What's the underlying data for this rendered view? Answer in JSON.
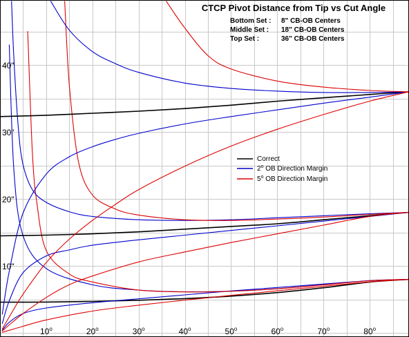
{
  "chart_data": {
    "type": "line",
    "title": "CTCP Pivot Distance from Tip vs Cut Angle",
    "set_notes": [
      {
        "label": "Bottom Set :",
        "value": "8\" CB-OB Centers"
      },
      {
        "label": "Middle Set :",
        "value": "18\" CB-OB Centers"
      },
      {
        "label": "Top Set :",
        "value": "36\" CB-OB Centers"
      }
    ],
    "xlabel": "",
    "ylabel": "",
    "xlim": [
      0,
      88.5
    ],
    "ylim": [
      -0.6,
      49.7
    ],
    "x_tick_values": [
      10,
      20,
      30,
      40,
      50,
      60,
      70,
      80
    ],
    "x_tick_labels": [
      "10",
      "20",
      "30",
      "40",
      "50",
      "60",
      "70",
      "80"
    ],
    "x_tick_suffix": "o",
    "y_tick_values": [
      10,
      20,
      30,
      40
    ],
    "y_tick_labels": [
      "10\"",
      "20\"",
      "30\"",
      "40\""
    ],
    "x_grid_step": 5,
    "y_grid_step": 5,
    "grid": true,
    "legend": {
      "placement": "center-right",
      "entries": [
        {
          "name": "Correct",
          "color": "#000000"
        },
        {
          "name": "2",
          "sup": "o",
          "suffix": " OB Direction Margin",
          "color": "#0000cc"
        },
        {
          "name": "5",
          "sup": "o",
          "suffix": " OB Direction Margin",
          "color": "#dd0000"
        }
      ]
    },
    "sets": [
      {
        "set": "Bottom Set",
        "D": 8
      },
      {
        "set": "Middle Set",
        "D": 18
      },
      {
        "set": "Top Set",
        "D": 36
      }
    ],
    "series": [
      {
        "set": "Bottom Set",
        "kind": "correct",
        "color": "#000000",
        "x": [
          0,
          10,
          20,
          30,
          40,
          50,
          60,
          70,
          80,
          88.5
        ],
        "y": [
          4.59,
          4.62,
          4.71,
          4.88,
          5.13,
          5.5,
          6.03,
          6.75,
          7.6,
          8.0
        ]
      },
      {
        "set": "Bottom Set",
        "kind": "margin-2",
        "branch": "upper",
        "color": "#0000cc",
        "x": [
          2,
          3,
          5,
          10,
          20,
          30,
          40,
          50,
          60,
          70,
          80,
          88.5
        ],
        "y": [
          43.0,
          24.3,
          14.5,
          9.63,
          7.19,
          6.41,
          6.15,
          6.25,
          6.61,
          7.22,
          7.82,
          8.0
        ]
      },
      {
        "set": "Bottom Set",
        "kind": "margin-2",
        "branch": "lower",
        "color": "#0000cc",
        "x": [
          0.5,
          2,
          5,
          10,
          20,
          30,
          40,
          50,
          60,
          70,
          80,
          88.5
        ],
        "y": [
          0.4,
          1.6,
          2.9,
          3.73,
          4.51,
          5.1,
          5.69,
          6.27,
          6.79,
          7.31,
          7.8,
          8.0
        ]
      },
      {
        "set": "Bottom Set",
        "kind": "margin-5",
        "branch": "upper",
        "color": "#dd0000",
        "x": [
          6,
          7,
          8,
          10,
          15,
          20,
          30,
          40,
          50,
          60,
          70,
          80,
          88.5
        ],
        "y": [
          45.0,
          27.0,
          19.3,
          12.3,
          8.8,
          7.62,
          6.4,
          6.13,
          6.22,
          6.59,
          7.18,
          7.8,
          8.0
        ]
      },
      {
        "set": "Bottom Set",
        "kind": "margin-5",
        "branch": "lower",
        "color": "#dd0000",
        "x": [
          0.5,
          2,
          5,
          10,
          20,
          30,
          40,
          50,
          60,
          70,
          80,
          88.5
        ],
        "y": [
          0.1,
          0.4,
          1.0,
          1.95,
          3.27,
          4.15,
          4.9,
          5.62,
          6.3,
          6.97,
          7.63,
          8.0
        ]
      },
      {
        "set": "Middle Set",
        "kind": "correct",
        "color": "#000000",
        "x": [
          0,
          10,
          20,
          30,
          40,
          50,
          60,
          70,
          80,
          88.5
        ],
        "y": [
          14.5,
          14.6,
          14.8,
          15.1,
          15.5,
          15.9,
          16.3,
          16.9,
          17.5,
          18.0
        ]
      },
      {
        "set": "Middle Set",
        "kind": "margin-2",
        "branch": "upper",
        "color": "#0000cc",
        "x": [
          2.5,
          3,
          4,
          5,
          7,
          10,
          15,
          20,
          30,
          40,
          50,
          60,
          70,
          80,
          88.5
        ],
        "y": [
          49.5,
          41.0,
          30.3,
          25.1,
          21.4,
          19.5,
          18.1,
          17.4,
          16.9,
          16.8,
          16.9,
          17.2,
          17.5,
          17.8,
          18.0
        ]
      },
      {
        "set": "Middle Set",
        "kind": "margin-2",
        "branch": "lower",
        "color": "#0000cc",
        "x": [
          0.5,
          2,
          5,
          10,
          15,
          20,
          30,
          40,
          50,
          60,
          70,
          80,
          88.5
        ],
        "y": [
          1.4,
          4.8,
          9.0,
          11.5,
          12.4,
          13.1,
          13.9,
          14.6,
          15.3,
          16.0,
          16.7,
          17.4,
          18.0
        ]
      },
      {
        "set": "Middle Set",
        "kind": "margin-5",
        "branch": "upper",
        "color": "#dd0000",
        "x": [
          14,
          15,
          17,
          20,
          25,
          30,
          40,
          50,
          60,
          70,
          80,
          88.5
        ],
        "y": [
          49.5,
          37.0,
          25.5,
          20.6,
          18.5,
          17.6,
          16.9,
          16.8,
          17.0,
          17.3,
          17.7,
          18.0
        ]
      },
      {
        "set": "Middle Set",
        "kind": "margin-5",
        "branch": "lower",
        "color": "#dd0000",
        "x": [
          0.5,
          2,
          5,
          10,
          15,
          20,
          30,
          40,
          50,
          60,
          70,
          80,
          88.5
        ],
        "y": [
          0.3,
          1.2,
          2.9,
          5.3,
          7.2,
          8.5,
          10.6,
          12.1,
          13.5,
          14.8,
          16.1,
          17.4,
          18.0
        ]
      },
      {
        "set": "Top Set",
        "kind": "correct",
        "color": "#000000",
        "x": [
          0,
          10,
          20,
          30,
          40,
          50,
          60,
          70,
          80,
          88.5
        ],
        "y": [
          32.3,
          32.5,
          32.8,
          33.1,
          33.5,
          34.0,
          34.6,
          35.1,
          35.6,
          36.0
        ]
      },
      {
        "set": "Top Set",
        "kind": "margin-2",
        "branch": "upper",
        "color": "#0000cc",
        "x": [
          11,
          15,
          20,
          25,
          30,
          40,
          50,
          60,
          70,
          80,
          88.5
        ],
        "y": [
          49.5,
          45.2,
          42.0,
          40.2,
          38.9,
          37.3,
          36.5,
          36.1,
          35.9,
          35.9,
          36.0
        ]
      },
      {
        "set": "Top Set",
        "kind": "margin-2",
        "branch": "lower",
        "color": "#0000cc",
        "x": [
          0.5,
          2,
          5,
          10,
          15,
          20,
          25,
          30,
          40,
          50,
          60,
          70,
          80,
          88.5
        ],
        "y": [
          2.8,
          9.2,
          17.9,
          23.7,
          26.3,
          27.8,
          28.9,
          29.8,
          31.2,
          32.3,
          33.3,
          34.3,
          35.2,
          36.0
        ]
      },
      {
        "set": "Top Set",
        "kind": "margin-5",
        "branch": "upper",
        "color": "#dd0000",
        "x": [
          36,
          40,
          45,
          50,
          60,
          70,
          80,
          88.5
        ],
        "y": [
          49.5,
          45.5,
          41.4,
          39.4,
          37.6,
          36.7,
          36.2,
          36.0
        ]
      },
      {
        "set": "Top Set",
        "kind": "margin-5",
        "branch": "lower",
        "color": "#dd0000",
        "x": [
          0.5,
          2,
          5,
          10,
          15,
          20,
          25,
          30,
          40,
          50,
          60,
          70,
          80,
          88.5
        ],
        "y": [
          0.6,
          2.4,
          5.8,
          10.5,
          14.0,
          16.8,
          19.2,
          21.4,
          24.9,
          27.9,
          30.4,
          32.6,
          34.6,
          36.0
        ]
      }
    ]
  }
}
